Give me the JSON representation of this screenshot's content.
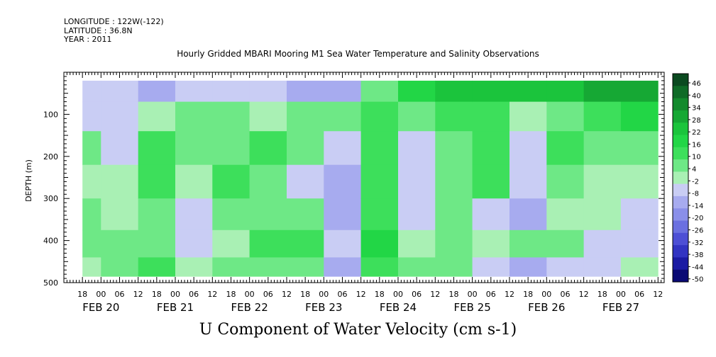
{
  "header": {
    "longitude": "LONGITUDE : 122W(-122)",
    "latitude": "LATITUDE : 36.8N",
    "year": "YEAR : 2011"
  },
  "chart_data": {
    "type": "heatmap",
    "title": "Hourly Gridded MBARI Mooring M1 Sea Water Temperature and Salinity Observations",
    "variable_label": "U Component of Water Velocity (cm s-1)",
    "ylabel": "DEPTH (m)",
    "y_range": [
      500,
      0
    ],
    "y_ticks": [
      100,
      200,
      300,
      400,
      500
    ],
    "y_tick_labels": [
      "100",
      "200",
      "300",
      "400",
      "500"
    ],
    "x_range": [
      "2011-02-19T12:00",
      "2011-02-27T14:00"
    ],
    "x_hour_ticks": [
      "18",
      "00",
      "06",
      "12",
      "18",
      "00",
      "06",
      "12",
      "18",
      "00",
      "06",
      "12",
      "18",
      "00",
      "06",
      "12",
      "18",
      "00",
      "06",
      "12",
      "18",
      "00",
      "06",
      "12",
      "18",
      "00",
      "06",
      "12",
      "18",
      "00",
      "06",
      "12"
    ],
    "x_date_labels": [
      {
        "label": "FEB 20",
        "time": "2011-02-20T00:00"
      },
      {
        "label": "FEB 21",
        "time": "2011-02-21T00:00"
      },
      {
        "label": "FEB 22",
        "time": "2011-02-22T00:00"
      },
      {
        "label": "FEB 23",
        "time": "2011-02-23T00:00"
      },
      {
        "label": "FEB 24",
        "time": "2011-02-24T00:00"
      },
      {
        "label": "FEB 25",
        "time": "2011-02-25T00:00"
      },
      {
        "label": "FEB 26",
        "time": "2011-02-26T00:00"
      },
      {
        "label": "FEB 27",
        "time": "2011-02-27T00:00"
      }
    ],
    "data_start": "2011-02-19T18:00",
    "data_end": "2011-02-27T12:00",
    "depth_min": 20,
    "depth_max": 485,
    "colorbar": {
      "levels": [
        46,
        40,
        34,
        28,
        22,
        16,
        10,
        4,
        -2,
        -8,
        -14,
        -20,
        -26,
        -32,
        -38,
        -44,
        -50
      ],
      "labels": [
        "46",
        "40",
        "34",
        "28",
        "22",
        "16",
        "10",
        "4",
        "-2",
        "-8",
        "-14",
        "-20",
        "-26",
        "-32",
        "-38",
        "-44",
        "-50"
      ],
      "colors": [
        "#0b4a20",
        "#0f6b27",
        "#138a2d",
        "#16a834",
        "#1bc43c",
        "#22d646",
        "#3ddf5b",
        "#6ee886",
        "#a9f0b4",
        "#c9cdf4",
        "#a7abef",
        "#8a8fe9",
        "#6b70e0",
        "#4d4fd5",
        "#3234c2",
        "#1b1ba3",
        "#0a0a74"
      ]
    },
    "time_columns": [
      {
        "time": "2011-02-19T18:00",
        "u": [
          -6,
          -4,
          4,
          2,
          4,
          6,
          2
        ]
      },
      {
        "time": "2011-02-20T06:00",
        "u": [
          -8,
          -6,
          -4,
          -2,
          2,
          4,
          6
        ]
      },
      {
        "time": "2011-02-20T18:00",
        "u": [
          -10,
          2,
          10,
          12,
          6,
          8,
          12
        ]
      },
      {
        "time": "2011-02-21T06:00",
        "u": [
          -8,
          4,
          4,
          2,
          -6,
          -8,
          2
        ]
      },
      {
        "time": "2011-02-21T18:00",
        "u": [
          -6,
          6,
          8,
          10,
          4,
          2,
          4
        ]
      },
      {
        "time": "2011-02-22T06:00",
        "u": [
          -4,
          2,
          10,
          6,
          4,
          10,
          6
        ]
      },
      {
        "time": "2011-02-22T18:00",
        "u": [
          -12,
          8,
          4,
          -4,
          6,
          12,
          8
        ]
      },
      {
        "time": "2011-02-23T06:00",
        "u": [
          -14,
          4,
          -8,
          -12,
          -10,
          -6,
          -12
        ]
      },
      {
        "time": "2011-02-23T18:00",
        "u": [
          4,
          10,
          12,
          14,
          12,
          16,
          10
        ]
      },
      {
        "time": "2011-02-24T06:00",
        "u": [
          16,
          8,
          -4,
          -6,
          -8,
          2,
          4
        ]
      },
      {
        "time": "2011-02-24T18:00",
        "u": [
          22,
          10,
          8,
          6,
          4,
          8,
          6
        ]
      },
      {
        "time": "2011-02-25T06:00",
        "u": [
          26,
          12,
          14,
          10,
          -6,
          2,
          -4
        ]
      },
      {
        "time": "2011-02-25T18:00",
        "u": [
          22,
          -2,
          -6,
          -8,
          -10,
          4,
          -14
        ]
      },
      {
        "time": "2011-02-26T06:00",
        "u": [
          24,
          8,
          10,
          4,
          2,
          6,
          -4
        ]
      },
      {
        "time": "2011-02-26T18:00",
        "u": [
          30,
          14,
          6,
          2,
          -2,
          -4,
          -6
        ]
      },
      {
        "time": "2011-02-27T06:00",
        "u": [
          28,
          16,
          4,
          2,
          -4,
          -6,
          -2
        ]
      }
    ],
    "depth_rows": [
      40,
      100,
      180,
      260,
      340,
      410,
      470
    ]
  }
}
